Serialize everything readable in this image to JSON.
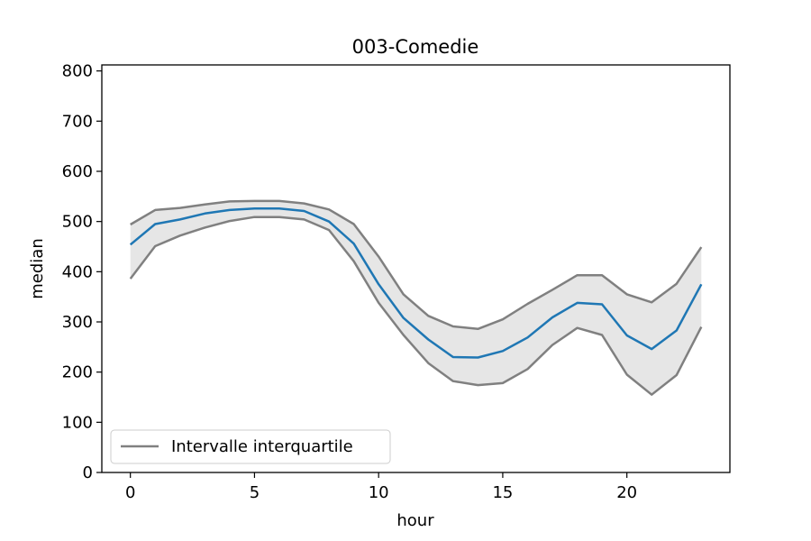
{
  "chart_data": {
    "type": "line",
    "title": "003-Comedie",
    "xlabel": "hour",
    "ylabel": "median",
    "xlim": [
      -1.15,
      24.15
    ],
    "ylim": [
      0,
      812
    ],
    "x_ticks": [
      0,
      5,
      10,
      15,
      20
    ],
    "y_ticks": [
      0,
      100,
      200,
      300,
      400,
      500,
      600,
      700,
      800
    ],
    "x": [
      0,
      1,
      2,
      3,
      4,
      5,
      6,
      7,
      8,
      9,
      10,
      11,
      12,
      13,
      14,
      15,
      16,
      17,
      18,
      19,
      20,
      21,
      22,
      23
    ],
    "series": [
      {
        "name": "",
        "role": "median",
        "color": "#1f77b4",
        "values": [
          454,
          495,
          504,
          516,
          523,
          526,
          526,
          521,
          500,
          456,
          375,
          308,
          265,
          230,
          229,
          242,
          269,
          309,
          338,
          335,
          273,
          246,
          283,
          375
        ]
      },
      {
        "name": "Intervalle interquartile",
        "role": "q3",
        "color": "#808080",
        "values": [
          494,
          523,
          527,
          534,
          540,
          541,
          541,
          536,
          524,
          495,
          430,
          355,
          312,
          291,
          286,
          305,
          336,
          364,
          393,
          393,
          355,
          339,
          376,
          449
        ]
      },
      {
        "name": "",
        "role": "q1",
        "color": "#808080",
        "values": [
          386,
          451,
          472,
          488,
          501,
          509,
          509,
          504,
          483,
          421,
          338,
          274,
          218,
          182,
          174,
          178,
          206,
          254,
          288,
          274,
          195,
          155,
          194,
          290
        ]
      }
    ],
    "band_fill": "#e6e6e6",
    "legend": {
      "placement": "lower-left",
      "entries": [
        "Intervalle interquartile"
      ]
    },
    "grid": false
  }
}
